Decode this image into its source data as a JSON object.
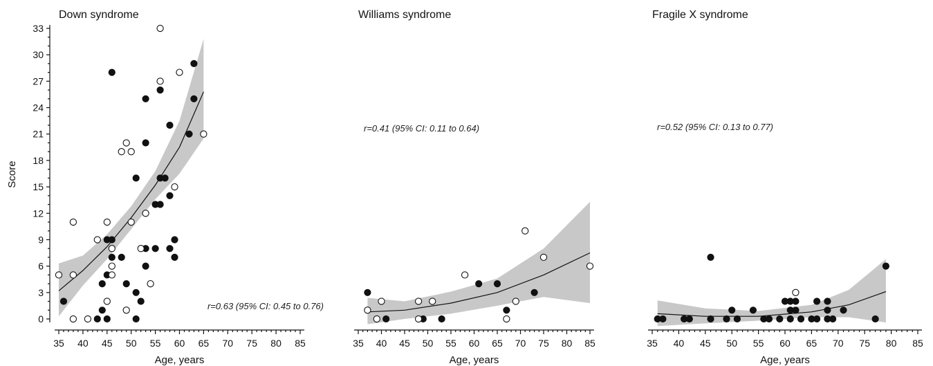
{
  "y_axis_label": "Score",
  "chart_data": [
    {
      "type": "scatter",
      "title": "Down syndrome",
      "xlabel": "Age, years",
      "ylabel": "Score",
      "xlim": [
        35,
        85
      ],
      "ylim": [
        0,
        33
      ],
      "x_ticks": [
        35,
        40,
        45,
        50,
        55,
        60,
        65,
        70,
        75,
        80,
        85
      ],
      "y_ticks": [
        0,
        3,
        6,
        9,
        12,
        15,
        18,
        21,
        24,
        27,
        30,
        33
      ],
      "annotation": "r=0.63 (95% CI: 0.45 to 0.76)",
      "fit": {
        "x": [
          35,
          40,
          45,
          50,
          55,
          60,
          65
        ],
        "y": [
          3.2,
          5.5,
          8.2,
          11.5,
          15.2,
          19.5,
          25.8
        ],
        "ci_low": [
          0.3,
          3.8,
          6.8,
          10.2,
          13.6,
          16.5,
          20.5
        ],
        "ci_high": [
          6.3,
          7.2,
          9.6,
          12.8,
          16.8,
          22.5,
          31.8
        ]
      },
      "series": [
        {
          "marker": "filled",
          "points": [
            [
              36,
              2
            ],
            [
              43,
              0
            ],
            [
              44,
              1
            ],
            [
              44,
              4
            ],
            [
              45,
              0
            ],
            [
              45,
              5
            ],
            [
              45,
              9
            ],
            [
              46,
              7
            ],
            [
              46,
              9
            ],
            [
              46,
              28
            ],
            [
              48,
              7
            ],
            [
              49,
              4
            ],
            [
              51,
              0
            ],
            [
              51,
              3
            ],
            [
              51,
              16
            ],
            [
              52,
              2
            ],
            [
              53,
              6
            ],
            [
              53,
              8
            ],
            [
              53,
              20
            ],
            [
              53,
              25
            ],
            [
              55,
              8
            ],
            [
              55,
              13
            ],
            [
              56,
              13
            ],
            [
              56,
              16
            ],
            [
              56,
              26
            ],
            [
              57,
              16
            ],
            [
              58,
              8
            ],
            [
              58,
              14
            ],
            [
              58,
              22
            ],
            [
              59,
              7
            ],
            [
              59,
              9
            ],
            [
              62,
              21
            ],
            [
              63,
              25
            ],
            [
              63,
              29
            ]
          ]
        },
        {
          "marker": "open",
          "points": [
            [
              35,
              5
            ],
            [
              38,
              0
            ],
            [
              38,
              5
            ],
            [
              38,
              11
            ],
            [
              41,
              0
            ],
            [
              43,
              9
            ],
            [
              45,
              2
            ],
            [
              45,
              11
            ],
            [
              46,
              5
            ],
            [
              46,
              6
            ],
            [
              46,
              8
            ],
            [
              48,
              19
            ],
            [
              49,
              1
            ],
            [
              49,
              20
            ],
            [
              50,
              11
            ],
            [
              50,
              19
            ],
            [
              52,
              8
            ],
            [
              53,
              12
            ],
            [
              54,
              4
            ],
            [
              56,
              27
            ],
            [
              56,
              33
            ],
            [
              59,
              15
            ],
            [
              60,
              28
            ],
            [
              65,
              21
            ]
          ]
        }
      ]
    },
    {
      "type": "scatter",
      "title": "Williams syndrome",
      "xlabel": "Age, years",
      "xlim": [
        35,
        85
      ],
      "ylim": [
        0,
        33
      ],
      "x_ticks": [
        35,
        40,
        45,
        50,
        55,
        60,
        65,
        70,
        75,
        80,
        85
      ],
      "annotation": "r=0.41 (95% CI: 0.11 to 0.64)",
      "fit": {
        "x": [
          37,
          45,
          55,
          65,
          75,
          85
        ],
        "y": [
          0.8,
          1.0,
          1.8,
          3.0,
          5.0,
          7.5
        ],
        "ci_low": [
          -0.6,
          0.0,
          0.6,
          1.5,
          2.5,
          1.8
        ],
        "ci_high": [
          2.4,
          2.0,
          3.1,
          4.6,
          8.0,
          13.3
        ]
      },
      "series": [
        {
          "marker": "filled",
          "points": [
            [
              37,
              3
            ],
            [
              41,
              0
            ],
            [
              49,
              0
            ],
            [
              53,
              0
            ],
            [
              61,
              4
            ],
            [
              65,
              4
            ],
            [
              67,
              1
            ],
            [
              73,
              3
            ]
          ]
        },
        {
          "marker": "open",
          "points": [
            [
              37,
              1
            ],
            [
              39,
              0
            ],
            [
              40,
              2
            ],
            [
              48,
              0
            ],
            [
              48,
              2
            ],
            [
              51,
              2
            ],
            [
              58,
              5
            ],
            [
              67,
              0
            ],
            [
              69,
              2
            ],
            [
              71,
              10
            ],
            [
              75,
              7
            ],
            [
              85,
              6
            ]
          ]
        }
      ]
    },
    {
      "type": "scatter",
      "title": "Fragile X syndrome",
      "xlabel": "Age, years",
      "xlim": [
        35,
        85
      ],
      "ylim": [
        0,
        33
      ],
      "x_ticks": [
        35,
        40,
        45,
        50,
        55,
        60,
        65,
        70,
        75,
        80,
        85
      ],
      "annotation": "r=0.52 (95% CI: 0.13 to 0.77)",
      "fit": {
        "x": [
          36,
          45,
          55,
          65,
          72,
          79
        ],
        "y": [
          0.6,
          0.3,
          0.3,
          0.8,
          1.6,
          3.1
        ],
        "ci_low": [
          -0.8,
          -0.5,
          -0.2,
          0.2,
          0.2,
          -0.4
        ],
        "ci_high": [
          2.1,
          1.2,
          0.9,
          1.6,
          3.3,
          6.8
        ]
      },
      "series": [
        {
          "marker": "filled",
          "points": [
            [
              36,
              0
            ],
            [
              37,
              0
            ],
            [
              41,
              0
            ],
            [
              42,
              0
            ],
            [
              46,
              0
            ],
            [
              46,
              7
            ],
            [
              49,
              0
            ],
            [
              50,
              1
            ],
            [
              51,
              0
            ],
            [
              54,
              1
            ],
            [
              56,
              0
            ],
            [
              57,
              0
            ],
            [
              59,
              0
            ],
            [
              60,
              2
            ],
            [
              61,
              0
            ],
            [
              61,
              1
            ],
            [
              61,
              2
            ],
            [
              62,
              1
            ],
            [
              62,
              2
            ],
            [
              63,
              0
            ],
            [
              65,
              0
            ],
            [
              66,
              0
            ],
            [
              66,
              2
            ],
            [
              68,
              0
            ],
            [
              68,
              1
            ],
            [
              68,
              2
            ],
            [
              69,
              0
            ],
            [
              71,
              1
            ],
            [
              77,
              0
            ],
            [
              79,
              6
            ]
          ]
        },
        {
          "marker": "open",
          "points": [
            [
              62,
              3
            ]
          ]
        }
      ]
    }
  ]
}
